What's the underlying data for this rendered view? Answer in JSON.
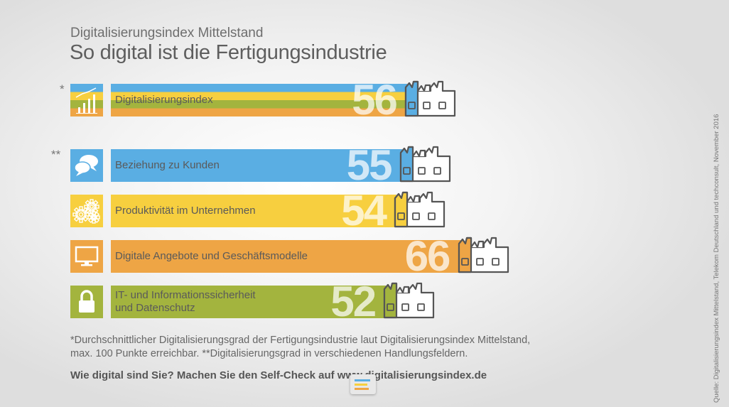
{
  "header": {
    "subtitle": "Digitalisierungsindex Mittelstand",
    "title": "So digital ist die Fertigungsindustrie"
  },
  "markers": {
    "index": "*",
    "fields": "**"
  },
  "colors": {
    "blue": "#5aaee3",
    "yellow": "#f7cf3f",
    "orange": "#eea545",
    "green": "#a3b43e",
    "factory_fill": "#ffffff",
    "factory_stroke": "#555555"
  },
  "chart_data": {
    "type": "bar",
    "ylim": [
      0,
      100
    ],
    "categories": [
      "Digitalisierungsindex",
      "Beziehung zu Kunden",
      "Produktivität im Unternehmen",
      "Digitale Angebote und Geschäftsmodelle",
      "IT- und Informationssicherheit und Datenschutz"
    ],
    "values": [
      56,
      55,
      54,
      66,
      52
    ],
    "bars": [
      {
        "label_lines": [
          "Digitalisierungsindex"
        ],
        "value_label": "56",
        "value": 56,
        "color": "multi",
        "icon": "bar-chart-icon"
      },
      {
        "label_lines": [
          "Beziehung zu Kunden"
        ],
        "value_label": "55",
        "value": 55,
        "color": "#5aaee3",
        "icon": "speech-bubbles-icon"
      },
      {
        "label_lines": [
          "Produktivität im Unternehmen"
        ],
        "value_label": "54",
        "value": 54,
        "color": "#f7cf3f",
        "icon": "gears-icon"
      },
      {
        "label_lines": [
          "Digitale Angebote und Geschäftsmodelle"
        ],
        "value_label": "66",
        "value": 66,
        "color": "#eea545",
        "icon": "monitor-icon"
      },
      {
        "label_lines": [
          "IT- und Informationssicherheit",
          "und Datenschutz"
        ],
        "value_label": "52",
        "value": 52,
        "color": "#a3b43e",
        "icon": "lock-icon"
      }
    ]
  },
  "footnote": {
    "line1": "*Durchschnittlicher Digitalisierungsgrad der Fertigungsindustrie laut Digitalisierungsindex Mittelstand,",
    "line2": "max. 100 Punkte erreichbar. **Digitalisierungsgrad in verschiedenen Handlungsfeldern."
  },
  "cta": "Wie digital sind Sie? Machen Sie den Self-Check auf www.digitalisierungsindex.de",
  "source": "Quelle: Digitalisierungsindex Mittelstand, Telekom Deutschland und techconsult, November 2016"
}
